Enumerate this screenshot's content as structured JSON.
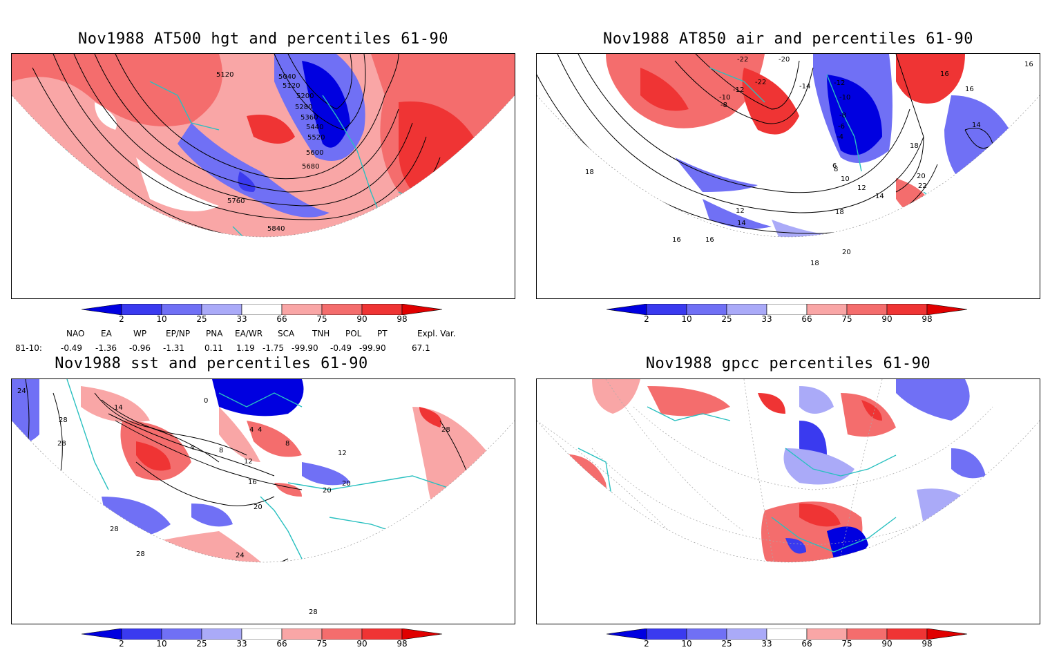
{
  "panels": [
    {
      "id": "hgt500",
      "title": "Nov1988 AT500 hgt and percentiles 61-90",
      "labels": [
        "5120",
        "5040",
        "5120",
        "5200",
        "5280",
        "5360",
        "5440",
        "5520",
        "5600",
        "5680",
        "5760",
        "5840"
      ]
    },
    {
      "id": "air850",
      "title": "Nov1988 AT850 air and percentiles 61-90",
      "labels": [
        "-22",
        "-20",
        "-12",
        "-10",
        "-8",
        "-22",
        "-14",
        "-12",
        "-10",
        "-8",
        "-6",
        "-4",
        "6",
        "8",
        "10",
        "12",
        "14",
        "16",
        "16",
        "16",
        "14",
        "18",
        "18",
        "20",
        "22",
        "12",
        "14",
        "16",
        "16",
        "18",
        "20",
        "18"
      ]
    },
    {
      "id": "sst",
      "title": "Nov1988 sst and percentiles 61-90",
      "labels": [
        "24",
        "28",
        "14",
        "28",
        "0",
        "4",
        "4",
        "4",
        "8",
        "12",
        "16",
        "20",
        "20",
        "20",
        "12",
        "28",
        "28",
        "24",
        "28",
        "28",
        "8"
      ]
    },
    {
      "id": "gpcc",
      "title": "Nov1988 gpcc percentiles 61-90",
      "labels": []
    }
  ],
  "colorbar": {
    "labels": [
      "2",
      "10",
      "25",
      "33",
      "66",
      "75",
      "90",
      "98"
    ],
    "colors": [
      "#0000e0",
      "#3a3aef",
      "#7070f5",
      "#aaaaf8",
      "#ffffff",
      "#f9a6a6",
      "#f46d6d",
      "#ef3434",
      "#e00000"
    ]
  },
  "indices": {
    "row_label": "81-10:",
    "headers": [
      "NAO",
      "EA",
      "WP",
      "EP/NP",
      "PNA",
      "EA/WR",
      "SCA",
      "TNH",
      "POL",
      "PT",
      "Expl. Var."
    ],
    "values": [
      "-0.49",
      "-1.36",
      "-0.96",
      "-1.31",
      "0.11",
      "1.19",
      "-1.75",
      "-99.90",
      "-0.49",
      "-99.90",
      "67.1"
    ]
  }
}
